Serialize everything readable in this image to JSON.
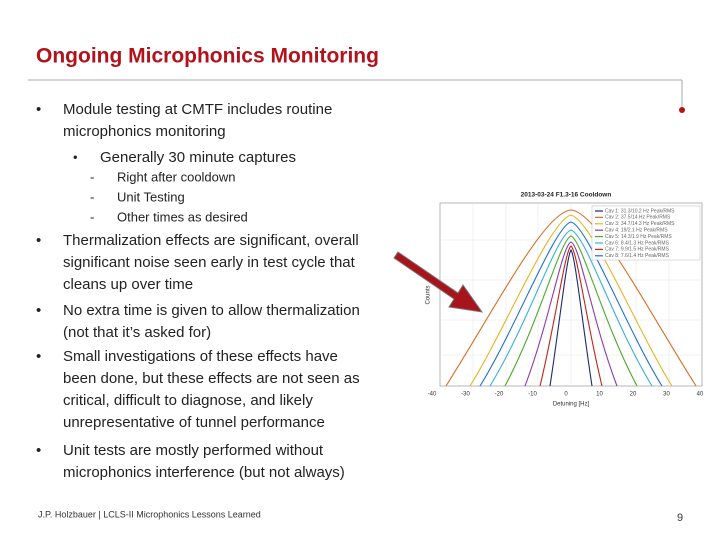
{
  "header": {
    "title": "Ongoing Microphonics Monitoring"
  },
  "bullets": [
    {
      "lines": [
        "Module testing at CMTF includes routine",
        "microphonics monitoring"
      ],
      "sub": [
        {
          "lines": [
            "Generally 30 minute captures"
          ],
          "items": [
            "Right after cooldown",
            "Unit Testing",
            "Other times as desired"
          ]
        }
      ]
    },
    {
      "lines": [
        "Thermalization effects are significant, overall",
        "significant noise seen early in test cycle that",
        "cleans up over time"
      ]
    },
    {
      "lines": [
        "No extra time is given to allow thermalization",
        "(not that it’s asked for)"
      ]
    },
    {
      "lines": [
        "Small investigations of these effects have",
        "been done, but these effects are not seen as",
        "critical, difficult to diagnose, and likely",
        "unrepresentative of tunnel performance"
      ]
    },
    {
      "lines": [
        "Unit tests are mostly performed without",
        "microphonics interference (but not always)"
      ]
    }
  ],
  "figure": {
    "title": "2013-03-24 F1.3-16 Cooldown",
    "x_label": "Detuning [Hz]",
    "y_label": "Counts",
    "x_ticks": [
      "-40",
      "-30",
      "-20",
      "-10",
      "0",
      "10",
      "20",
      "30",
      "40"
    ],
    "legend": [
      "Cav 1: 31.3/10.2 Hz Peak/RMS",
      "Cav 2: 37.5/14 Hz Peak/RMS",
      "Cav 3: 34.7/14.3 Hz Peak/RMS",
      "Cav 4: 19/2.1 Hz Peak/RMS",
      "Cav 5: 14.3/1.9 Hz Peak/RMS",
      "Cav 6: 8.4/1.3 Hz Peak/RMS",
      "Cav 7: 9.9/1.5 Hz Peak/RMS",
      "Cav 8: 7.6/1.4 Hz Peak/RMS"
    ]
  },
  "footer": {
    "text": "J.P. Holzbauer | LCLS-II Microphonics Lessons Learned",
    "page": "9"
  }
}
